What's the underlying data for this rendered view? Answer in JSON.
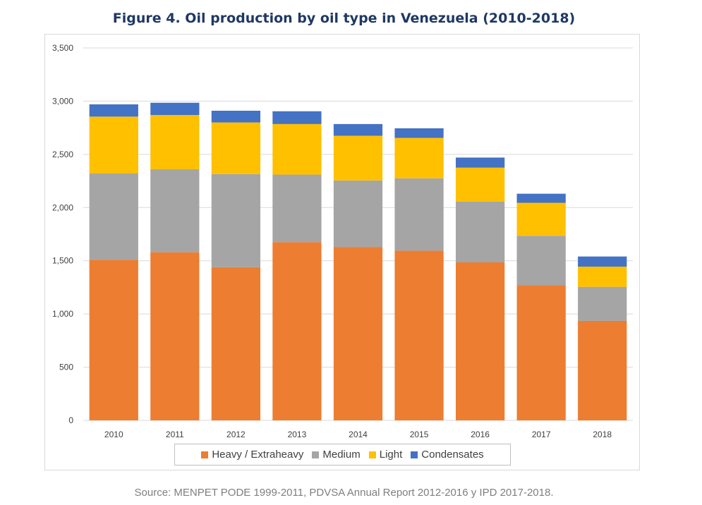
{
  "header": {
    "title": "Figure 4. Oil production by oil type in Venezuela (2010-2018)"
  },
  "footer": {
    "source": "Source: MENPET PODE 1999-2011, PDVSA Annual Report 2012-2016 y IPD 2017-2018."
  },
  "chart_data": {
    "type": "bar",
    "stacked": true,
    "title": "Figure 4. Oil production by oil type in Venezuela (2010-2018)",
    "xlabel": "",
    "ylabel": "",
    "ylim": [
      0,
      3500
    ],
    "yticks": [
      0,
      500,
      1000,
      1500,
      2000,
      2500,
      3000,
      3500
    ],
    "ytick_labels": [
      "0",
      "500",
      "1,000",
      "1,500",
      "2,000",
      "2,500",
      "3,000",
      "3,500"
    ],
    "grid": true,
    "legend_position": "bottom",
    "categories": [
      "2010",
      "2011",
      "2012",
      "2013",
      "2014",
      "2015",
      "2016",
      "2017",
      "2018"
    ],
    "series": [
      {
        "name": "Heavy / Extraheavy",
        "color": "#ed7d31",
        "values": [
          1510,
          1580,
          1440,
          1675,
          1630,
          1595,
          1485,
          1270,
          935
        ]
      },
      {
        "name": "Medium",
        "color": "#a5a5a5",
        "values": [
          810,
          780,
          875,
          635,
          625,
          680,
          570,
          465,
          320
        ]
      },
      {
        "name": "Light",
        "color": "#ffc000",
        "values": [
          535,
          510,
          485,
          475,
          420,
          380,
          320,
          310,
          190
        ]
      },
      {
        "name": "Condensates",
        "color": "#4472c4",
        "values": [
          115,
          115,
          110,
          120,
          110,
          90,
          95,
          85,
          95
        ]
      }
    ]
  }
}
